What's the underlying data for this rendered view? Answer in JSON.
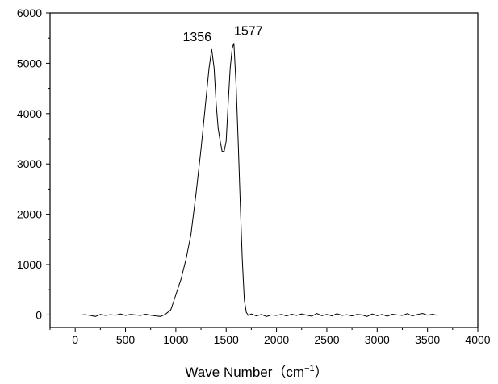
{
  "chart_data": {
    "type": "line",
    "xlabel": "Wave Number（cm",
    "xlabel_sup": "−1",
    "xlabel_close": "）",
    "ylabel": "",
    "xlim": [
      -250,
      4000
    ],
    "ylim": [
      -250,
      6000
    ],
    "x_ticks": [
      0,
      500,
      1000,
      1500,
      2000,
      2500,
      3000,
      3500,
      4000
    ],
    "x_tick_labels": [
      "0",
      "500",
      "1000",
      "1500",
      "2000",
      "2500",
      "3000",
      "3500",
      "4000"
    ],
    "y_ticks": [
      0,
      1000,
      2000,
      3000,
      4000,
      5000,
      6000
    ],
    "y_tick_labels": [
      "0",
      "1000",
      "2000",
      "3000",
      "4000",
      "5000",
      "6000"
    ],
    "grid": false,
    "annotations": [
      {
        "text": "1356",
        "x": 1356,
        "y": 5280
      },
      {
        "text": "1577",
        "x": 1577,
        "y": 5400
      }
    ],
    "series": [
      {
        "x": [
          60,
          100,
          150,
          200,
          250,
          300,
          350,
          400,
          450,
          500,
          550,
          600,
          650,
          700,
          750,
          800,
          850,
          900,
          950,
          1000,
          1050,
          1100,
          1150,
          1200,
          1250,
          1300,
          1330,
          1356,
          1380,
          1400,
          1420,
          1440,
          1460,
          1480,
          1500,
          1520,
          1540,
          1560,
          1577,
          1600,
          1620,
          1640,
          1660,
          1680,
          1700,
          1720,
          1750,
          1800,
          1850,
          1900,
          1950,
          2000,
          2050,
          2100,
          2150,
          2200,
          2250,
          2300,
          2350,
          2400,
          2450,
          2500,
          2550,
          2600,
          2650,
          2700,
          2750,
          2800,
          2850,
          2900,
          2950,
          3000,
          3050,
          3100,
          3150,
          3200,
          3250,
          3300,
          3350,
          3400,
          3450,
          3500,
          3550,
          3600
        ],
        "y": [
          0,
          5,
          -10,
          -30,
          10,
          -10,
          5,
          -5,
          20,
          -10,
          10,
          0,
          -10,
          15,
          -5,
          -20,
          -30,
          20,
          100,
          400,
          700,
          1100,
          1600,
          2400,
          3300,
          4300,
          4900,
          5280,
          4900,
          4200,
          3700,
          3450,
          3250,
          3250,
          3450,
          4200,
          4900,
          5300,
          5400,
          4500,
          3400,
          2200,
          1100,
          300,
          50,
          -10,
          20,
          -20,
          10,
          -30,
          0,
          -10,
          10,
          -20,
          15,
          -10,
          20,
          -5,
          -25,
          30,
          -15,
          10,
          -20,
          25,
          -10,
          5,
          -20,
          10,
          0,
          -30,
          20,
          -15,
          10,
          -25,
          15,
          0,
          -10,
          25,
          -20,
          10,
          30,
          -5,
          15,
          -10
        ]
      }
    ]
  }
}
